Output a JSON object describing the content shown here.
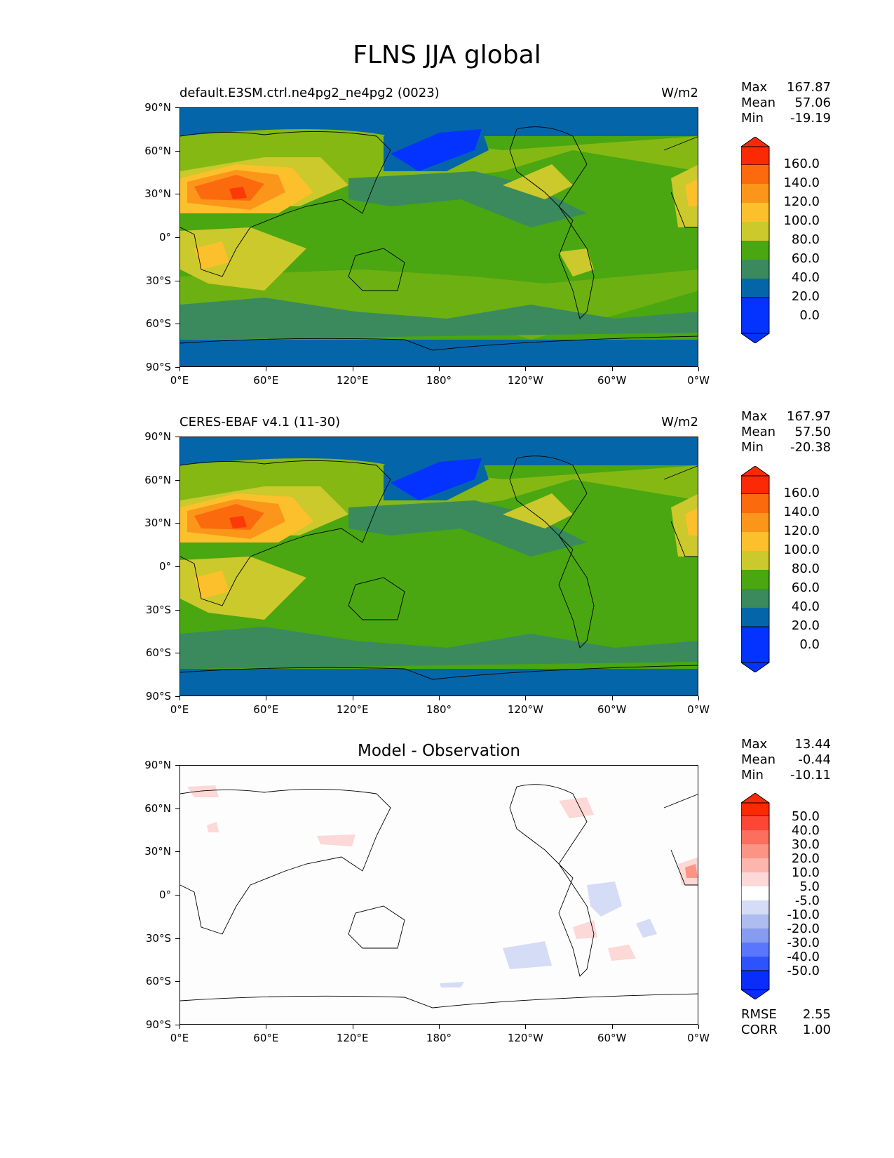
{
  "figure_title": "FLNS JJA global",
  "colors": {
    "ref_levels": [
      "#0433ff",
      "#0466a8",
      "#3a8a5e",
      "#4aa611",
      "#86b814",
      "#cbc92b",
      "#fcc02c",
      "#fc961a",
      "#fc6a0e",
      "#fc3a08",
      "#fc2a04"
    ],
    "diff_levels": [
      "#0a2dfc",
      "#2e53fc",
      "#5a77fc",
      "#879cf0",
      "#aebcef",
      "#d4dcf6",
      "#ffffff",
      "#fcd8d6",
      "#fcb6ae",
      "#fc9486",
      "#fc6e5e",
      "#fc4636",
      "#fc2a04"
    ]
  },
  "panels": [
    {
      "id": "test",
      "title": "default.E3SM.ctrl.ne4pg2_ne4pg2 (0023)",
      "units": "W/m2",
      "stats": [
        {
          "label": "Max",
          "value": "167.87"
        },
        {
          "label": "Mean",
          "value": "57.06"
        },
        {
          "label": "Min",
          "value": "-19.19"
        }
      ],
      "colorbar_labels": [
        "160.0",
        "140.0",
        "120.0",
        "100.0",
        "80.0",
        "60.0",
        "40.0",
        "20.0",
        "0.0"
      ]
    },
    {
      "id": "ref",
      "title": "CERES-EBAF v4.1 (11-30)",
      "units": "W/m2",
      "stats": [
        {
          "label": "Max",
          "value": "167.97"
        },
        {
          "label": "Mean",
          "value": "57.50"
        },
        {
          "label": "Min",
          "value": "-20.38"
        }
      ],
      "colorbar_labels": [
        "160.0",
        "140.0",
        "120.0",
        "100.0",
        "80.0",
        "60.0",
        "40.0",
        "20.0",
        "0.0"
      ]
    },
    {
      "id": "diff",
      "title": "Model - Observation",
      "units": "",
      "stats": [
        {
          "label": "Max",
          "value": "13.44"
        },
        {
          "label": "Mean",
          "value": "-0.44"
        },
        {
          "label": "Min",
          "value": "-10.11"
        }
      ],
      "colorbar_labels": [
        "50.0",
        "40.0",
        "30.0",
        "20.0",
        "10.0",
        "5.0",
        "-5.0",
        "-10.0",
        "-20.0",
        "-30.0",
        "-40.0",
        "-50.0"
      ],
      "extra_stats": [
        {
          "label": "RMSE",
          "value": "2.55"
        },
        {
          "label": "CORR",
          "value": "1.00"
        }
      ]
    }
  ],
  "lat_labels": [
    "90°N",
    "60°N",
    "30°N",
    "0°",
    "30°S",
    "60°S",
    "90°S"
  ],
  "lon_labels": [
    "0°E",
    "60°E",
    "120°E",
    "180°",
    "120°W",
    "60°W",
    "0°W"
  ]
}
